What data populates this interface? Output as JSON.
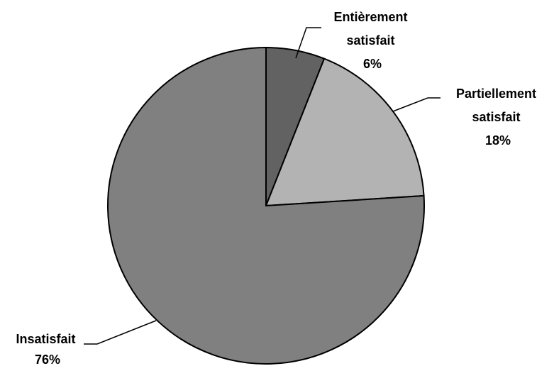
{
  "chart_data": {
    "type": "pie",
    "start_angle": "12 o'clock",
    "direction": "clockwise",
    "slices": [
      {
        "label": "Entièrement satisfait",
        "label_lines": [
          "Entièrement",
          "satisfait"
        ],
        "value": 6,
        "value_label": "6%",
        "color": "#626262"
      },
      {
        "label": "Partiellement satisfait",
        "label_lines": [
          "Partiellement",
          "satisfait"
        ],
        "value": 18,
        "value_label": "18%",
        "color": "#b3b3b3"
      },
      {
        "label": "Insatisfait",
        "label_lines": [
          "Insatisfait"
        ],
        "value": 76,
        "value_label": "76%",
        "color": "#808080"
      }
    ]
  }
}
